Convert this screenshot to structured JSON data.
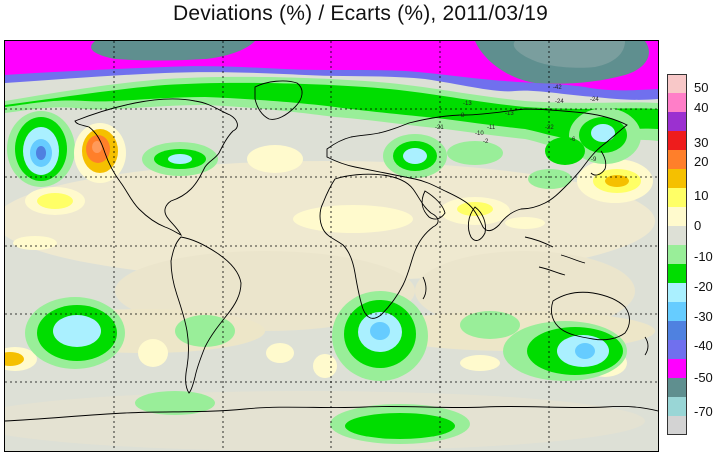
{
  "title": "Deviations (%) / Ecarts (%), 2011/03/19",
  "legend": {
    "labels": [
      "50",
      "40",
      "30",
      "20",
      "10",
      "0",
      "-10",
      "-20",
      "-30",
      "-40",
      "-50",
      "-70"
    ],
    "colors": [
      "#f8c8c8",
      "#ff7ec8",
      "#9b30d0",
      "#ee1c1c",
      "#ff7f2a",
      "#f5c000",
      "#ffff66",
      "#fffacd",
      "#dde0d6",
      "#99ee99",
      "#00dd00",
      "#aaf0ff",
      "#66ccff",
      "#4f81e0",
      "#7070ee",
      "#ff00ff",
      "#5f8f8f",
      "#99d6d6",
      "#d3d3d3"
    ]
  },
  "map_labels": [
    "-13",
    "-8",
    "-13",
    "-24",
    "-22",
    "-11",
    "-21",
    "-42",
    "-24",
    "-6",
    "-9",
    "-2",
    "-10"
  ]
}
